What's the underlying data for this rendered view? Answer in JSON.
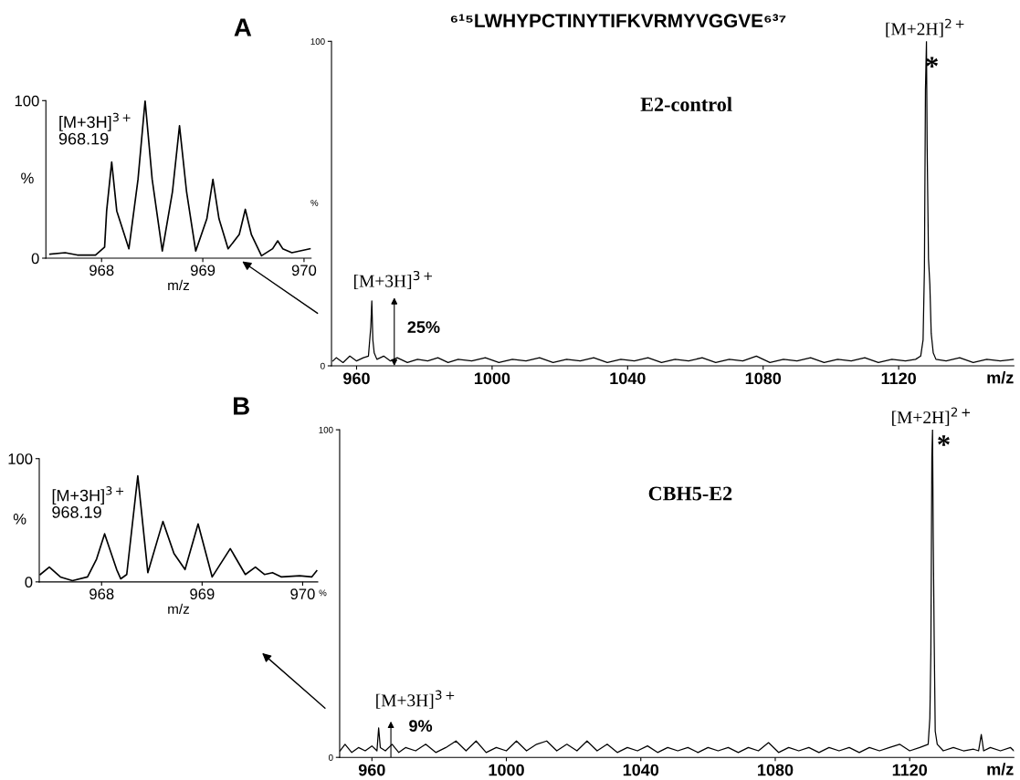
{
  "chart_data": [
    {
      "type": "line",
      "xlabel": "m/z",
      "ylabel": "%",
      "xlim": [
        967.45,
        970.07
      ],
      "xticks": [
        968,
        969,
        970
      ],
      "ylim": [
        0,
        100
      ],
      "yticks": [
        0,
        100
      ],
      "grid": false,
      "legend": false,
      "series": [
        {
          "color": "#000000",
          "x": [
            967.49,
            967.64,
            967.76,
            967.94,
            968.03,
            968.05,
            968.1,
            968.15,
            968.27,
            968.36,
            968.43,
            968.5,
            968.6,
            968.7,
            968.77,
            968.84,
            968.93,
            969.04,
            969.1,
            969.16,
            969.25,
            969.36,
            969.42,
            969.48,
            969.58,
            969.69,
            969.74,
            969.79,
            969.88,
            970.06
          ],
          "values": [
            2.5,
            3.5,
            2,
            2,
            7,
            30,
            61,
            30,
            6,
            50,
            100,
            50,
            4.5,
            42,
            84,
            42,
            4.5,
            25,
            50,
            25,
            6,
            15,
            31,
            15,
            1.5,
            6,
            11,
            6,
            3.5,
            6
          ]
        }
      ],
      "annotations": [
        {
          "text": "[M+3H]$^{3+}$\n968.19",
          "x": 968.1,
          "y": 61
        }
      ]
    },
    {
      "type": "line",
      "title": "⁶¹⁵LWHYPCTINYTIFKVRMYVGGVE⁶³⁷",
      "xlabel": "m/z",
      "ylabel": "%",
      "xlim": [
        952.6,
        1154
      ],
      "xticks": [
        960,
        1000,
        1040,
        1080,
        1120
      ],
      "ylim": [
        0,
        100
      ],
      "yticks": [
        0,
        100
      ],
      "grid": false,
      "legend": false,
      "series": [
        {
          "color": "#000000",
          "x": [
            953,
            954,
            956,
            958,
            960,
            962,
            963.5,
            964.2,
            964.5,
            964.8,
            965.2,
            966,
            968,
            970,
            972,
            975,
            978,
            981,
            984,
            987,
            990,
            994,
            998,
            1002,
            1006,
            1010,
            1014,
            1018,
            1022,
            1026,
            1030,
            1034,
            1038,
            1042,
            1046,
            1050,
            1054,
            1058,
            1062,
            1066,
            1070,
            1074,
            1078,
            1082,
            1086,
            1090,
            1094,
            1098,
            1102,
            1106,
            1110,
            1114,
            1118,
            1122,
            1125,
            1126.5,
            1127.2,
            1127.6,
            1127.9,
            1128.2,
            1128.4,
            1128.8,
            1129.2,
            1129.6,
            1130.2,
            1131,
            1134,
            1138,
            1142,
            1146,
            1150,
            1154
          ],
          "values": [
            1.5,
            2.5,
            1,
            3,
            1.5,
            2.5,
            3,
            12,
            20,
            8,
            4,
            2,
            3,
            1.5,
            2.5,
            1,
            2,
            1.5,
            2.5,
            1,
            2,
            1.5,
            2.5,
            1,
            2,
            1.5,
            2.5,
            1,
            2,
            1.5,
            2.5,
            1,
            2,
            1.5,
            2.5,
            1,
            2,
            1.5,
            2.5,
            1,
            2,
            1.5,
            3,
            1,
            2,
            1.5,
            2.5,
            1,
            2,
            1.5,
            2.5,
            1,
            2,
            1.5,
            2,
            3,
            8,
            30,
            85,
            100,
            68,
            33,
            25,
            10,
            4,
            2,
            1.5,
            2.5,
            1,
            2,
            1.5,
            2
          ]
        }
      ],
      "annotations": [
        "A",
        "E2-control",
        {
          "text": "[M+2H]$^{2+}$",
          "x": 1128.2,
          "y": 100
        },
        "*",
        {
          "text": "[M+3H]$^{3+}$",
          "x": 964.5,
          "y": 20
        },
        "25%"
      ]
    },
    {
      "type": "line",
      "xlabel": "m/z",
      "ylabel": "%",
      "xlim": [
        967.38,
        970.15
      ],
      "xticks": [
        968,
        969,
        970
      ],
      "ylim": [
        0,
        100
      ],
      "yticks": [
        0,
        100
      ],
      "grid": false,
      "legend": false,
      "series": [
        {
          "color": "#000000",
          "x": [
            967.39,
            967.48,
            967.59,
            967.71,
            967.86,
            967.95,
            968.03,
            968.15,
            968.19,
            968.25,
            968.36,
            968.46,
            968.61,
            968.72,
            968.83,
            968.96,
            969.1,
            969.28,
            969.43,
            969.53,
            969.62,
            969.7,
            969.79,
            969.97,
            970.09,
            970.14
          ],
          "values": [
            6,
            12,
            4,
            1,
            4,
            18.5,
            39,
            10,
            2.5,
            6,
            86,
            7.5,
            49,
            23,
            10,
            47,
            4,
            27,
            6,
            12,
            6,
            7.5,
            4,
            5,
            4,
            9
          ]
        }
      ],
      "annotations": [
        {
          "text": "[M+3H]$^{3+}$\n968.19",
          "x": 968.36,
          "y": 86
        }
      ]
    },
    {
      "type": "line",
      "xlabel": "m/z",
      "ylabel": "%",
      "xlim": [
        950.4,
        1151
      ],
      "xticks": [
        960,
        1000,
        1040,
        1080,
        1120
      ],
      "ylim": [
        0,
        100
      ],
      "yticks": [
        0,
        100
      ],
      "grid": false,
      "legend": false,
      "series": [
        {
          "color": "#000000",
          "x": [
            950.5,
            952,
            954,
            956,
            958,
            960,
            961.5,
            962,
            962.5,
            964,
            966,
            968,
            970,
            973,
            976,
            979,
            982,
            985,
            988,
            991,
            994,
            997,
            1000,
            1003,
            1006,
            1009,
            1012,
            1015,
            1018,
            1021,
            1024,
            1027,
            1030,
            1033,
            1036,
            1039,
            1042,
            1045,
            1048,
            1051,
            1054,
            1057,
            1060,
            1063,
            1066,
            1069,
            1072,
            1075,
            1078,
            1081,
            1084,
            1087,
            1090,
            1093,
            1096,
            1099,
            1102,
            1105,
            1108,
            1111,
            1114,
            1117,
            1120,
            1123,
            1125.5,
            1126.0,
            1126.3,
            1126.6,
            1126.8,
            1127.0,
            1127.3,
            1127.6,
            1128.2,
            1130,
            1133,
            1136,
            1139,
            1140.5,
            1141.3,
            1142,
            1144,
            1147,
            1150,
            1151
          ],
          "values": [
            2,
            4,
            1.5,
            3,
            2,
            3.5,
            2,
            9,
            3,
            2,
            4,
            1.5,
            3,
            2,
            4,
            1.5,
            3,
            5,
            2,
            5,
            1.5,
            3,
            2,
            5,
            2,
            4,
            5,
            2,
            4,
            2,
            5,
            2,
            4,
            1.5,
            3,
            2,
            3.5,
            1.5,
            3,
            2,
            3,
            1.5,
            3,
            2,
            3,
            1.5,
            3,
            2,
            4.5,
            1.5,
            3,
            2,
            3,
            1.5,
            3,
            2,
            3,
            1.5,
            3,
            2,
            3,
            4,
            2,
            3,
            4,
            12,
            32,
            92,
            100,
            68,
            35,
            8,
            4,
            2,
            3,
            2,
            2.5,
            2,
            7,
            2,
            3,
            2,
            3,
            2
          ]
        }
      ],
      "annotations": [
        "B",
        "CBH5-E2",
        {
          "text": "[M+2H]$^{2+}$",
          "x": 1126.8,
          "y": 100
        },
        "*",
        {
          "text": "[M+3H]$^{3+}$",
          "x": 962,
          "y": 9
        },
        "9%"
      ]
    }
  ]
}
